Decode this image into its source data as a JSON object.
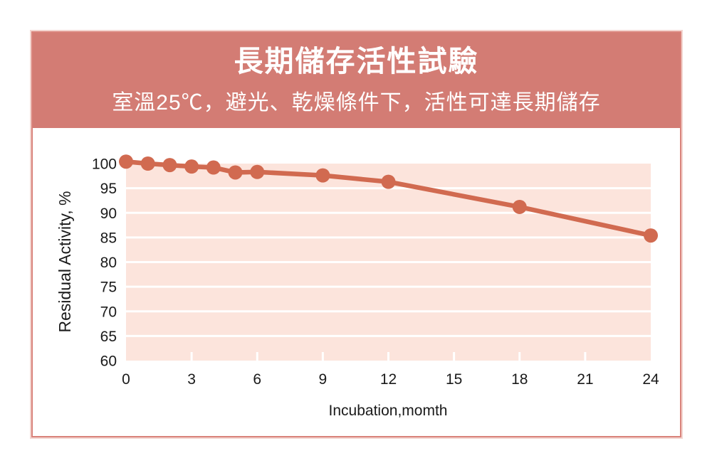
{
  "header": {
    "title": "長期儲存活性試驗",
    "subtitle": "室溫25℃，避光、乾燥條件下，活性可達長期儲存",
    "background_color": "#d37c74",
    "text_color": "#ffffff"
  },
  "card": {
    "border_color": "#d9837b",
    "outer_border_color": "#f3d5d0",
    "background_color": "#ffffff"
  },
  "chart_data": {
    "type": "line",
    "title": "",
    "x": [
      0,
      1,
      2,
      3,
      4,
      5,
      6,
      9,
      12,
      18,
      24
    ],
    "values": [
      100.4,
      100,
      99.7,
      99.4,
      99.2,
      98.2,
      98.3,
      97.6,
      96.3,
      91.2,
      85.4
    ],
    "series_name": "Residual Activity",
    "xlabel": "Incubation,momth",
    "ylabel": "Residual Activity, %",
    "xlim": [
      0,
      24
    ],
    "ylim": [
      60,
      100
    ],
    "x_ticks": [
      0,
      3,
      6,
      9,
      12,
      15,
      18,
      21,
      24
    ],
    "y_ticks": [
      60,
      65,
      70,
      75,
      80,
      85,
      90,
      95,
      100
    ],
    "grid": "horizontal white gridlines on filled plot area",
    "legend": "none",
    "line_color": "#d16a50",
    "marker_color": "#d16a50",
    "plot_bg_color": "#fce4dc",
    "gridline_color": "#ffffff",
    "tick_label_color": "#1a1a1a"
  }
}
